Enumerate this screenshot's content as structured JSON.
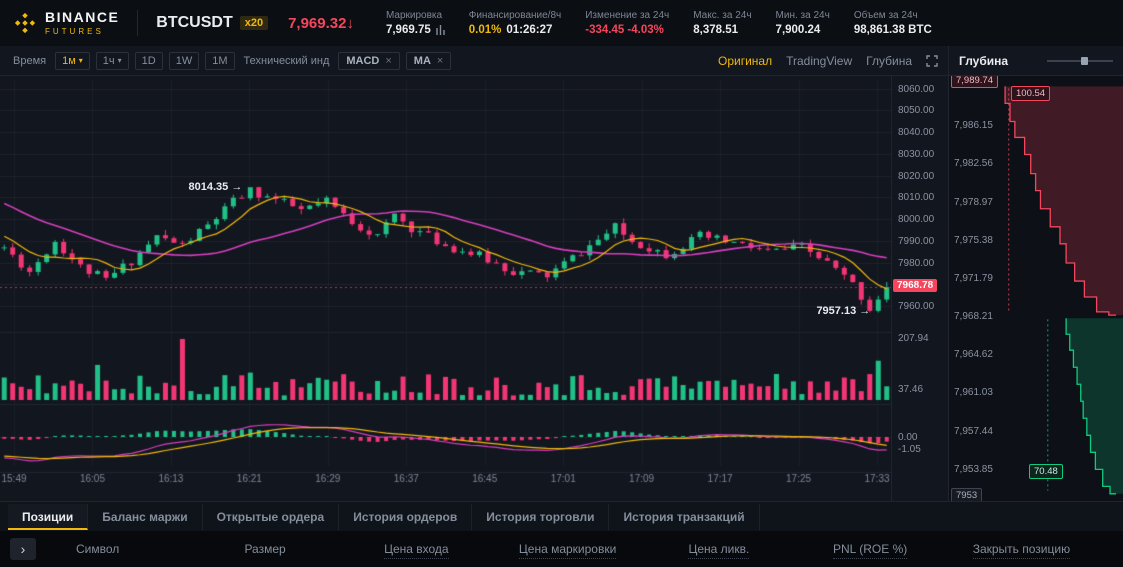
{
  "brand": {
    "name": "BINANCE",
    "sub": "FUTURES"
  },
  "header": {
    "symbol": "BTCUSDT",
    "leverage": "x20",
    "last_price": "7,969.32",
    "direction": "↓",
    "stats": [
      {
        "label": "Маркировка",
        "value": "7,969.75",
        "extra": ""
      },
      {
        "label": "Финансирование/8ч",
        "value": "0.01%",
        "extra": "01:26:27"
      },
      {
        "label": "Изменение за 24ч",
        "value": "-334.45 -4.03%",
        "extra": ""
      },
      {
        "label": "Макс. за 24ч",
        "value": "8,378.51",
        "extra": ""
      },
      {
        "label": "Мин. за 24ч",
        "value": "7,900.24",
        "extra": ""
      },
      {
        "label": "Объем за 24ч",
        "value": "98,861.38 BTC",
        "extra": ""
      }
    ]
  },
  "toolbar": {
    "time": "Время",
    "interval_active": "1м",
    "interval_dropdown2": "1ч",
    "intervals": [
      "1D",
      "1W",
      "1M"
    ],
    "indicator_label": "Технический инд",
    "indicator_tags": [
      "MACD",
      "MA"
    ],
    "right_links": [
      "Оригинал",
      "TradingView",
      "Глубина"
    ]
  },
  "chart_data": {
    "type": "candlestick",
    "title": "BTCUSDT 1m candles with MA(7), MA(25), volume and MACD",
    "interval": "1m",
    "time_labels": [
      "15:49",
      "16:05",
      "16:13",
      "16:21",
      "16:29",
      "16:37",
      "16:45",
      "17:01",
      "17:09",
      "17:17",
      "17:25",
      "17:33"
    ],
    "price_ticks": [
      8060,
      8050,
      8040,
      8030,
      8020,
      8010,
      8000,
      7990,
      7980,
      7970,
      7960
    ],
    "current_price": "7968.78",
    "annotations": [
      {
        "text": "8014.35",
        "minute": 29
      },
      {
        "text": "7957.13",
        "minute": 103
      }
    ],
    "keypoints": [
      [
        0,
        7987
      ],
      [
        3,
        7976
      ],
      [
        6,
        7990
      ],
      [
        9,
        7978
      ],
      [
        12,
        7972
      ],
      [
        15,
        7981
      ],
      [
        18,
        7992
      ],
      [
        21,
        7988
      ],
      [
        24,
        7997
      ],
      [
        27,
        8008
      ],
      [
        29,
        8013
      ],
      [
        32,
        8009
      ],
      [
        35,
        8004
      ],
      [
        38,
        8008
      ],
      [
        41,
        7999
      ],
      [
        44,
        7992
      ],
      [
        46,
        8002
      ],
      [
        48,
        7996
      ],
      [
        52,
        7988
      ],
      [
        56,
        7983
      ],
      [
        60,
        7976
      ],
      [
        64,
        7974
      ],
      [
        68,
        7985
      ],
      [
        72,
        7996
      ],
      [
        74,
        7990
      ],
      [
        78,
        7984
      ],
      [
        82,
        7992
      ],
      [
        86,
        7989
      ],
      [
        90,
        7985
      ],
      [
        94,
        7987
      ],
      [
        97,
        7980
      ],
      [
        100,
        7970
      ],
      [
        102,
        7959
      ],
      [
        104,
        7968.78
      ]
    ],
    "volume": {
      "max_label": "207.94",
      "current_label": "37.46",
      "spikes": {
        "11": 118,
        "21": 205,
        "29": 92,
        "34": 70,
        "44": 64,
        "50": 86,
        "63": 58,
        "75": 70,
        "88": 55,
        "103": 132
      }
    },
    "macd": {
      "zero_label": "0.00",
      "current_label": "-1.05"
    },
    "colors": {
      "up": "#21c087",
      "down": "#f23674",
      "ma_fast": "#f0b90b",
      "ma_slow": "#d63fbf"
    }
  },
  "depth": {
    "title": "Глубина",
    "price_ticks": [
      "7,986.15",
      "7,982.56",
      "7,978.97",
      "7,975.38",
      "7,971.79",
      "7,968.21",
      "7,964.62",
      "7,961.03",
      "7,957.44",
      "7,953.85"
    ],
    "top_label": "7,989.74",
    "bottom_label": "7953",
    "ask_hover_label": "100.54",
    "bid_hover_label": "70.48",
    "range": {
      "top": 7990.4,
      "bottom": 7951.2
    },
    "asks": [
      [
        7989.8,
        0.05
      ],
      [
        7988.2,
        0.09
      ],
      [
        7986.5,
        0.13
      ],
      [
        7985.0,
        0.21
      ],
      [
        7983.4,
        0.26
      ],
      [
        7981.6,
        0.3
      ],
      [
        7980.0,
        0.34
      ],
      [
        7978.3,
        0.42
      ],
      [
        7976.6,
        0.5
      ],
      [
        7975.0,
        0.55
      ],
      [
        7973.2,
        0.62
      ],
      [
        7971.5,
        0.7
      ],
      [
        7970.0,
        0.8
      ],
      [
        7968.6,
        0.9
      ],
      [
        7968.3,
        0.96
      ]
    ],
    "bids": [
      [
        7968.0,
        0.55
      ],
      [
        7966.5,
        0.58
      ],
      [
        7965.0,
        0.61
      ],
      [
        7963.4,
        0.64
      ],
      [
        7961.8,
        0.67
      ],
      [
        7960.2,
        0.69
      ],
      [
        7958.6,
        0.72
      ],
      [
        7957.0,
        0.75
      ],
      [
        7955.4,
        0.79
      ],
      [
        7953.8,
        0.85
      ],
      [
        7952.2,
        0.91
      ],
      [
        7951.5,
        0.96
      ]
    ]
  },
  "tabs": [
    {
      "label": "Позиции",
      "active": true
    },
    {
      "label": "Баланс маржи",
      "active": false
    },
    {
      "label": "Открытые ордера",
      "active": false
    },
    {
      "label": "История ордеров",
      "active": false
    },
    {
      "label": "История торговли",
      "active": false
    },
    {
      "label": "История транзакций",
      "active": false
    }
  ],
  "positions_table": {
    "columns": [
      "Символ",
      "Размер",
      "Цена входа",
      "Цена маркировки",
      "Цена ликв.",
      "PNL (ROE %)",
      "Закрыть позицию"
    ]
  }
}
